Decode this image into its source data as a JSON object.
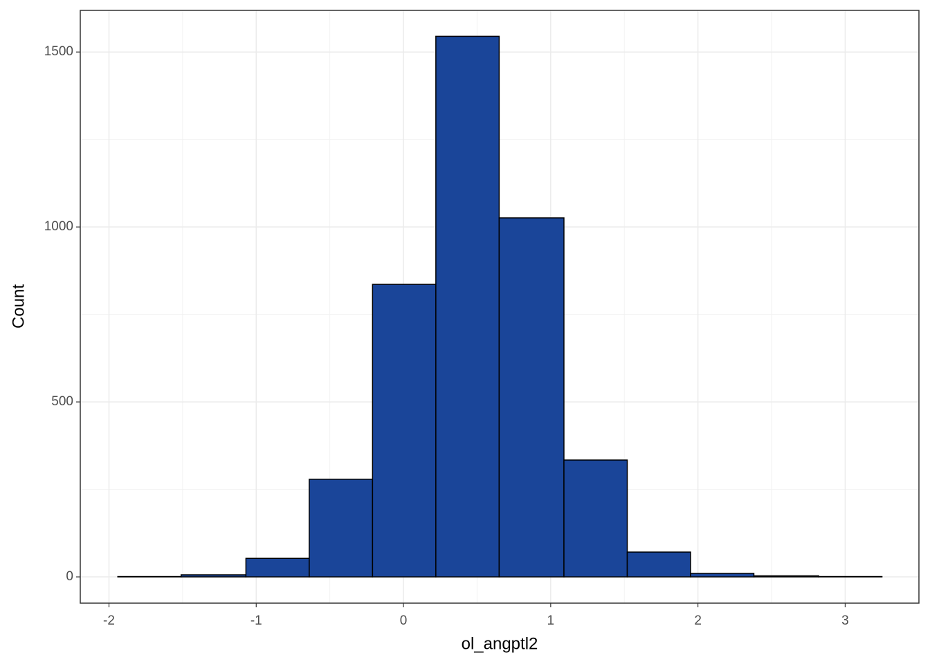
{
  "chart_data": {
    "type": "histogram",
    "x_label": "ol_angptl2",
    "y_label": "Count",
    "bins": [
      -1.94,
      -1.51,
      -1.07,
      -0.64,
      -0.21,
      0.22,
      0.65,
      1.09,
      1.52,
      1.95,
      2.38,
      2.82,
      3.25
    ],
    "values": [
      1,
      6,
      53,
      279,
      836,
      1545,
      1026,
      334,
      71,
      10,
      3,
      1
    ],
    "color": "#1a4599",
    "edgecolor": "#000000",
    "xlim": [
      -2.195,
      3.501
    ],
    "ylim": [
      -75,
      1619
    ],
    "xticks": [
      -2,
      -1,
      0,
      1,
      2,
      3
    ],
    "yticks": [
      0,
      500,
      1000,
      1500
    ],
    "grid": true
  }
}
